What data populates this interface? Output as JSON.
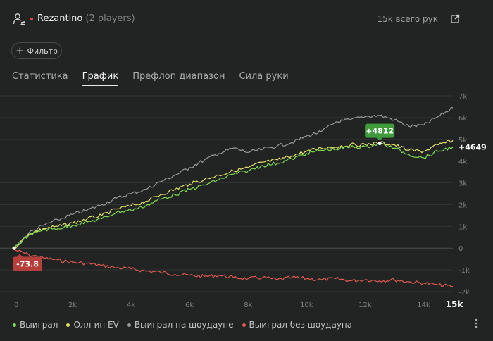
{
  "header": {
    "player_name": "Rezantino",
    "players_count": "(2 players)",
    "hands_total": "15k всего рук"
  },
  "filter": {
    "label": "Фильтр"
  },
  "tabs": [
    {
      "label": "Статистика"
    },
    {
      "label": "График"
    },
    {
      "label": "Префлоп диапазон"
    },
    {
      "label": "Сила руки"
    }
  ],
  "colors": {
    "won": "#7fdc4f",
    "allin_ev": "#e4e36a",
    "showdown": "#9a9a9a",
    "non_showdown": "#e05a4e",
    "badge_green": "#3f9b3b",
    "badge_red": "#b73f3b"
  },
  "chart_data": {
    "type": "line",
    "xlim": [
      0,
      15000
    ],
    "ylim": [
      -2000,
      7000
    ],
    "x_ticks": [
      "0",
      "2k",
      "4k",
      "6k",
      "8k",
      "10k",
      "12k",
      "14k"
    ],
    "x_end_label": "15k",
    "y_ticks": [
      "-2k",
      "-1k",
      "0",
      "1k",
      "2k",
      "3k",
      "4k",
      "5k",
      "6k",
      "7k"
    ],
    "series": [
      {
        "name": "Выиграл",
        "color_key": "won",
        "x": [
          0,
          500,
          1000,
          1500,
          2000,
          2500,
          3000,
          3500,
          4000,
          4500,
          5000,
          5500,
          6000,
          6500,
          7000,
          7500,
          8000,
          8500,
          9000,
          9500,
          10000,
          10500,
          11000,
          11500,
          12000,
          12500,
          13000,
          13500,
          14000,
          14500,
          15000
        ],
        "y": [
          0,
          600,
          850,
          900,
          1050,
          1200,
          1350,
          1650,
          1750,
          1950,
          2250,
          2450,
          2700,
          2900,
          3150,
          3400,
          3550,
          3800,
          3900,
          4100,
          4350,
          4500,
          4550,
          4650,
          4650,
          4800,
          4600,
          4300,
          4150,
          4450,
          4649
        ]
      },
      {
        "name": "Олл-ин EV",
        "color_key": "allin_ev",
        "x": [
          0,
          500,
          1000,
          1500,
          2000,
          2500,
          3000,
          3500,
          4000,
          4500,
          5000,
          5500,
          6000,
          6500,
          7000,
          7500,
          8000,
          8500,
          9000,
          9500,
          10000,
          10500,
          11000,
          11500,
          12000,
          12500,
          13000,
          13500,
          14000,
          14500,
          15000
        ],
        "y": [
          0,
          650,
          900,
          1000,
          1150,
          1350,
          1500,
          1800,
          1950,
          2150,
          2450,
          2700,
          2950,
          3150,
          3350,
          3550,
          3700,
          3950,
          4050,
          4250,
          4450,
          4600,
          4650,
          4750,
          4750,
          4850,
          4750,
          4500,
          4450,
          4750,
          4950
        ]
      },
      {
        "name": "Выиграл на шоудауне",
        "color_key": "showdown",
        "x": [
          0,
          500,
          1000,
          1500,
          2000,
          2500,
          3000,
          3500,
          4000,
          4500,
          5000,
          5500,
          6000,
          6500,
          7000,
          7500,
          8000,
          8500,
          9000,
          9500,
          10000,
          10500,
          11000,
          11500,
          12000,
          12500,
          13000,
          13500,
          14000,
          14500,
          15000
        ],
        "y": [
          0,
          700,
          1050,
          1300,
          1550,
          1750,
          2000,
          2300,
          2500,
          2700,
          3050,
          3350,
          3700,
          4050,
          4350,
          4600,
          4400,
          4550,
          4700,
          4850,
          5150,
          5350,
          5800,
          5900,
          6050,
          6100,
          5900,
          5600,
          5650,
          6050,
          6450
        ]
      },
      {
        "name": "Выиграл без шоудауна",
        "color_key": "non_showdown",
        "x": [
          0,
          500,
          1000,
          1500,
          2000,
          2500,
          3000,
          3500,
          4000,
          4500,
          5000,
          5500,
          6000,
          6500,
          7000,
          7500,
          8000,
          8500,
          9000,
          9500,
          10000,
          10500,
          11000,
          11500,
          12000,
          12500,
          13000,
          13500,
          14000,
          14500,
          15000
        ],
        "y": [
          -73.8,
          -300,
          -450,
          -550,
          -650,
          -700,
          -800,
          -900,
          -950,
          -1050,
          -1100,
          -1200,
          -1250,
          -1300,
          -1250,
          -1350,
          -1400,
          -1350,
          -1450,
          -1350,
          -1400,
          -1450,
          -1400,
          -1500,
          -1450,
          -1500,
          -1450,
          -1550,
          -1600,
          -1700,
          -1750
        ]
      }
    ],
    "annotations": [
      {
        "text": "+4812",
        "x": 12500,
        "y": 4812,
        "style": "green"
      },
      {
        "text": "-73.8",
        "x": 0,
        "y": -73.8,
        "style": "red"
      }
    ],
    "end_label": {
      "text": "+4649",
      "y": 4649
    },
    "grid": true
  }
}
